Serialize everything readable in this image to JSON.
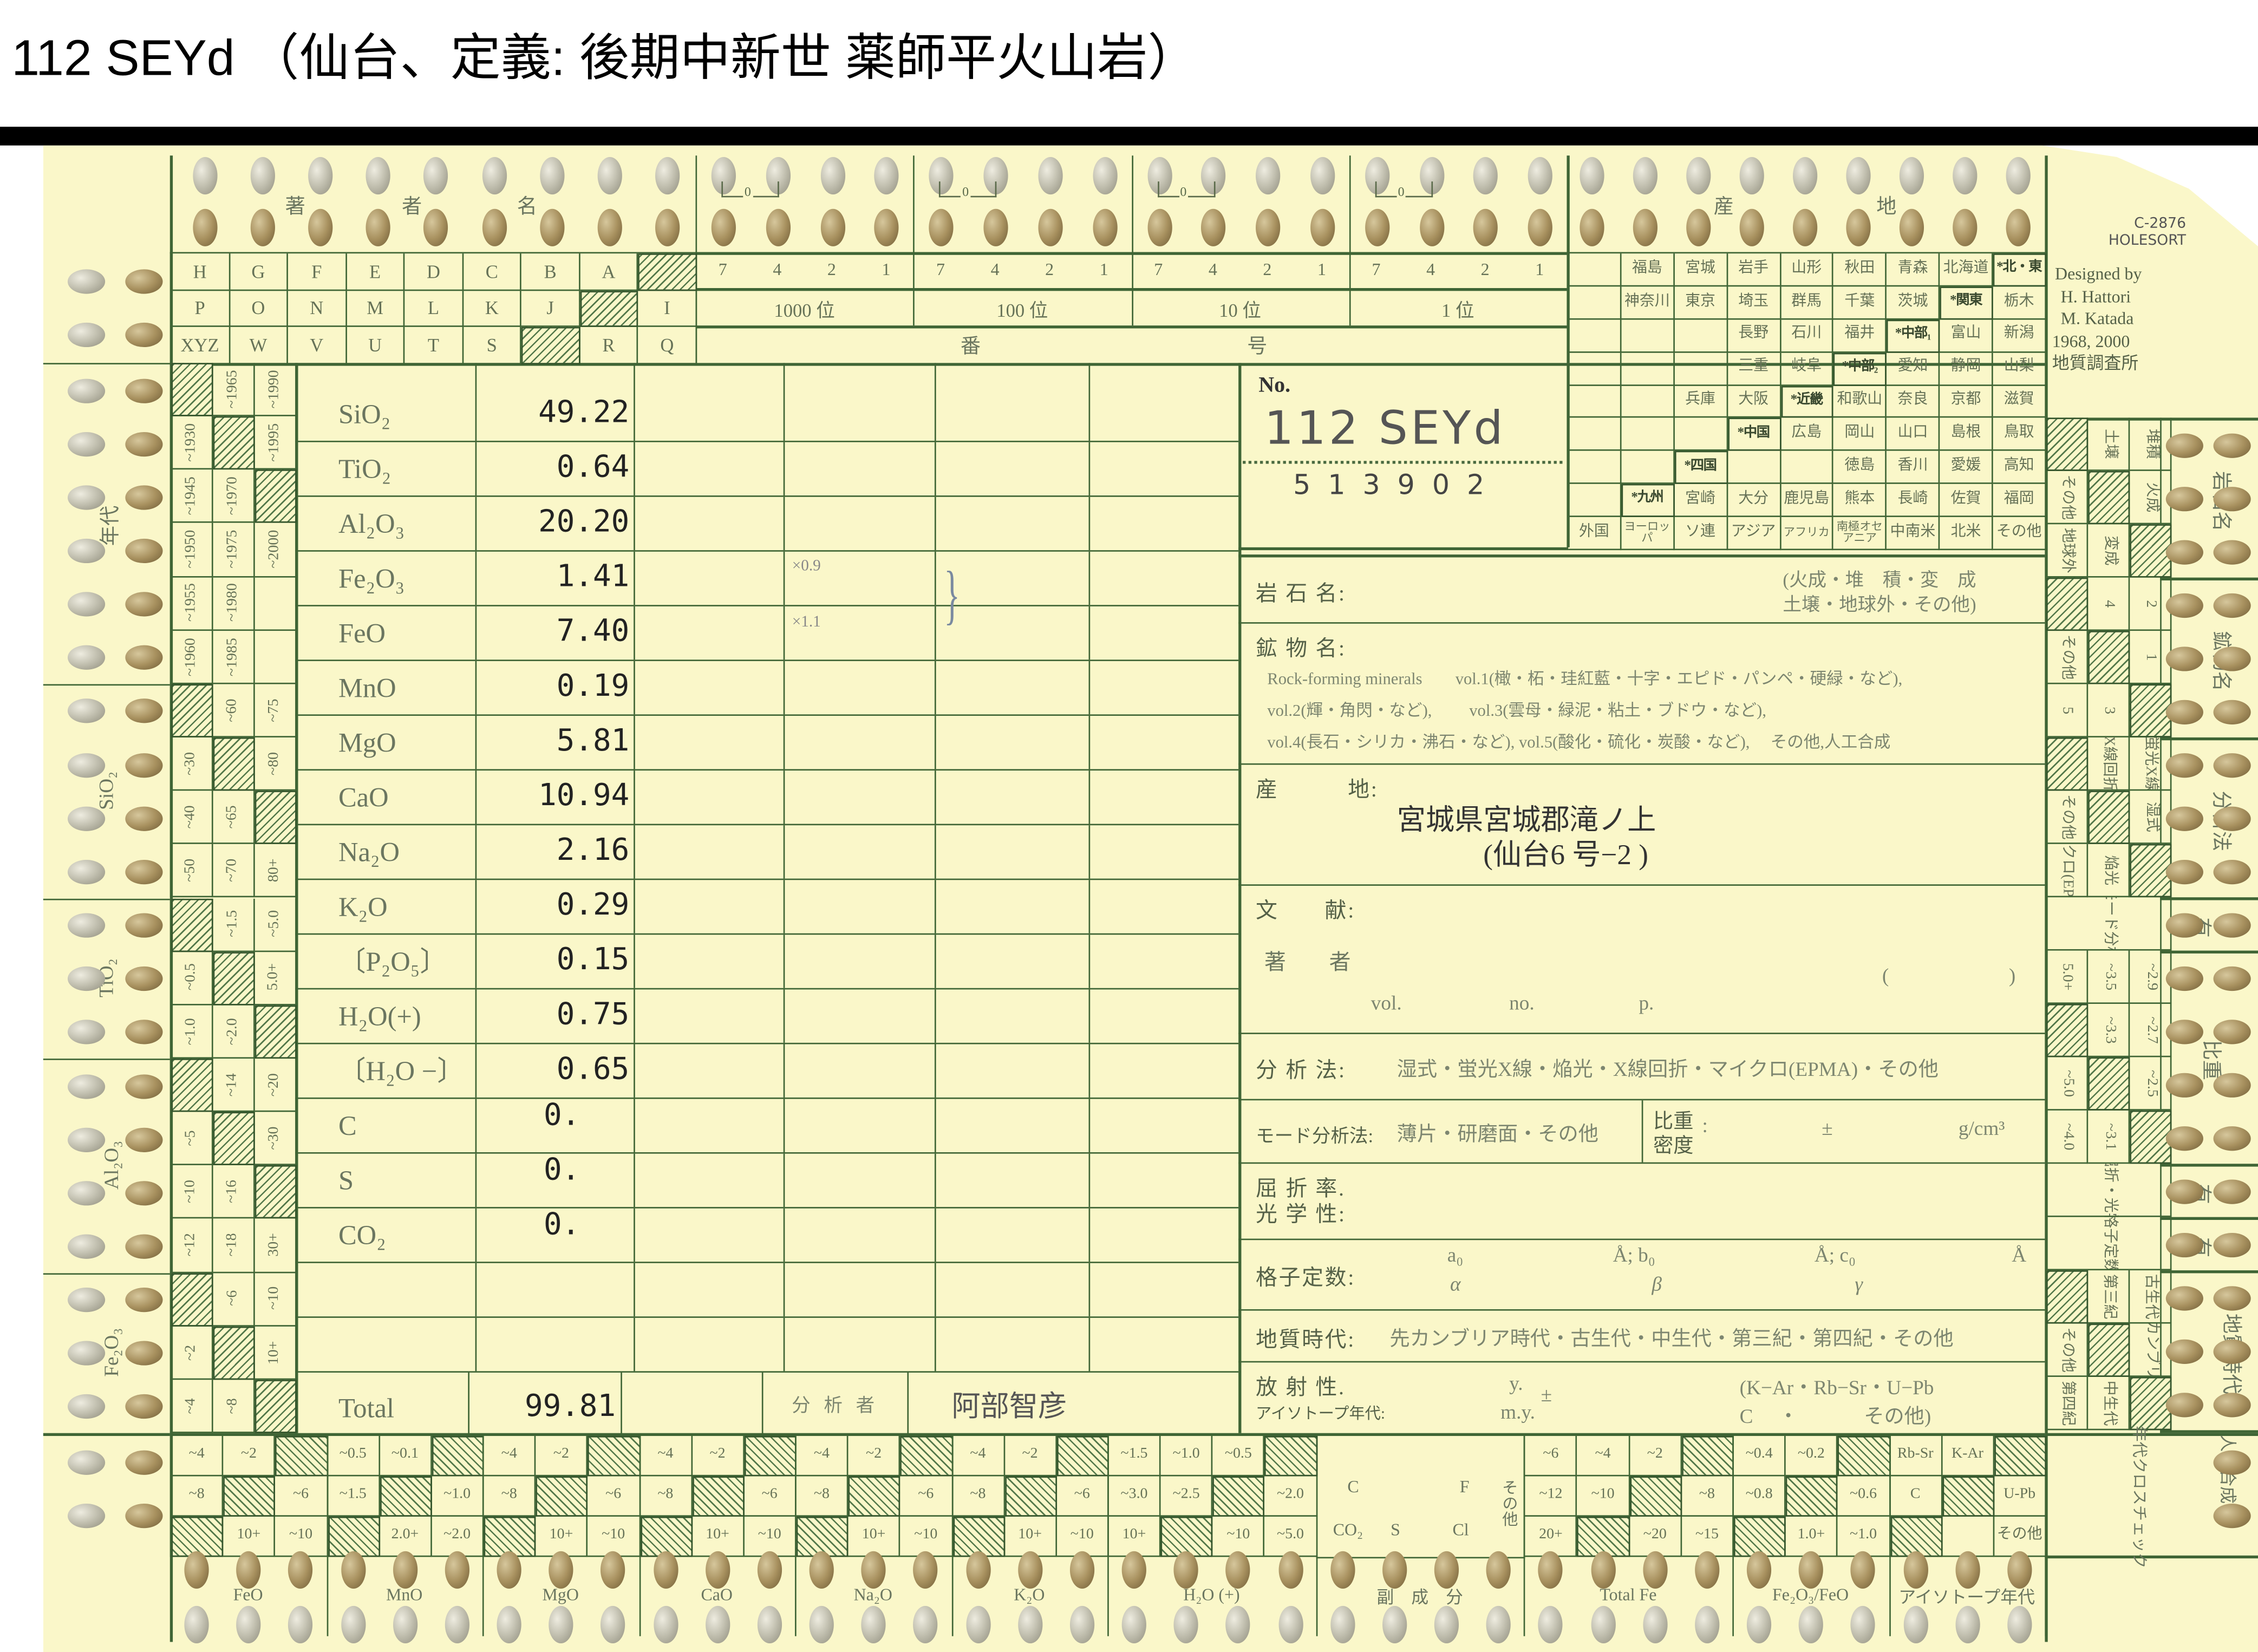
{
  "title": "112 SEYd （仙台、定義:  後期中新世  薬師平火山岩）",
  "header": {
    "author_label": [
      "著",
      "者",
      "名"
    ],
    "author_rows": [
      [
        "H",
        "G",
        "F",
        "E",
        "D",
        "C",
        "B",
        "A",
        "#"
      ],
      [
        "P",
        "O",
        "N",
        "M",
        "L",
        "K",
        "J",
        "#",
        "I"
      ],
      [
        "XYZ",
        "W",
        "V",
        "U",
        "T",
        "S",
        "#",
        "R",
        "Q"
      ]
    ],
    "number_digits": [
      "7",
      "4",
      "2",
      "1"
    ],
    "number_places": [
      "1000 位",
      "100 位",
      "10 位",
      "1 位"
    ],
    "number_label": [
      "番",
      "号"
    ],
    "zero_mark": "0",
    "locality_label": [
      "産",
      "地"
    ],
    "prefecture_rows": [
      [
        "",
        "福島",
        "宮城",
        "岩手",
        "山形",
        "秋田",
        "青森",
        "北海道",
        "*北・東"
      ],
      [
        "",
        "神奈川",
        "東京",
        "埼玉",
        "群馬",
        "千葉",
        "茨城",
        "*関東",
        "栃木"
      ],
      [
        "",
        "",
        "",
        "長野",
        "石川",
        "福井",
        "*中部₁",
        "富山",
        "新潟"
      ],
      [
        "",
        "",
        "",
        "三重",
        "岐阜",
        "*中部₂",
        "愛知",
        "静岡",
        "山梨"
      ],
      [
        "",
        "",
        "兵庫",
        "大阪",
        "*近畿",
        "和歌山",
        "奈良",
        "京都",
        "滋賀"
      ],
      [
        "",
        "",
        "",
        "*中国",
        "広島",
        "岡山",
        "山口",
        "島根",
        "鳥取"
      ],
      [
        "",
        "",
        "*四国",
        "",
        "",
        "徳島",
        "香川",
        "愛媛",
        "高知"
      ],
      [
        "",
        "*九州",
        "宮崎",
        "大分",
        "鹿児島",
        "熊本",
        "長崎",
        "佐賀",
        "福岡"
      ],
      [
        "外国",
        "ヨーロッパ",
        "ソ連",
        "アジア",
        "アフリカ",
        "南極オセアニア",
        "中南米",
        "北米",
        "その他"
      ]
    ]
  },
  "card_info": {
    "code": "C-2876",
    "brand": "HOLESORT",
    "designed_by": "Designed by",
    "designer_1": "H. Hattori",
    "designer_2": "M. Katada",
    "years": "1968, 2000",
    "org": "地質調査所"
  },
  "sample_no": {
    "label": "No.",
    "handwritten": "112 SEYd",
    "number": "5 1 3 9 0 2"
  },
  "analysis": {
    "rows": [
      {
        "oxide": "SiO₂",
        "value": "49.22"
      },
      {
        "oxide": "TiO₂",
        "value": "0.64"
      },
      {
        "oxide": "Al₂O₃",
        "value": "20.20"
      },
      {
        "oxide": "Fe₂O₃",
        "value": "1.41"
      },
      {
        "oxide": "FeO",
        "value": "7.40"
      },
      {
        "oxide": "MnO",
        "value": "0.19"
      },
      {
        "oxide": "MgO",
        "value": "5.81"
      },
      {
        "oxide": "CaO",
        "value": "10.94"
      },
      {
        "oxide": "Na₂O",
        "value": "2.16"
      },
      {
        "oxide": "K₂O",
        "value": "0.29"
      },
      {
        "oxide": "〔P₂O₅〕",
        "value": "0.15"
      },
      {
        "oxide": "H₂O(+)",
        "value": "0.75"
      },
      {
        "oxide": "〔H₂O −〕",
        "value": "0.65"
      },
      {
        "oxide": "C",
        "value": "0."
      },
      {
        "oxide": "S",
        "value": "0."
      },
      {
        "oxide": "CO₂",
        "value": "0."
      },
      {
        "oxide": "",
        "value": ""
      },
      {
        "oxide": "",
        "value": ""
      }
    ],
    "factor_fe2o3": "×0.9",
    "factor_feo": "×1.1",
    "brace": "}",
    "total_label": "Total",
    "total_value": "99.81",
    "analyst_label": "分 析 者",
    "analyst": "阿部智彦"
  },
  "fields": {
    "rock_name": {
      "label": "岩 石 名:",
      "options_1": "(火成・堆　積・変　成",
      "options_2": " 土壌・地球外・その他)"
    },
    "minerals": {
      "label": "鉱 物 名:",
      "line_1": "Rock-forming minerals　　vol.1(橄・柘・珪紅藍・十字・エピド・パンペ・硬緑・など),",
      "line_2": "vol.2(輝・角閃・など),　　 vol.3(雲母・緑泥・粘土・ブドウ・など),",
      "line_3": "vol.4(長石・シリカ・沸石・など), vol.5(酸化・硫化・炭酸・など),　 その他,人工合成"
    },
    "locality": {
      "label": "産　　　地:",
      "value_1": "宮城県宮城郡滝ノ上",
      "value_2": "(仙台6 号−2 )"
    },
    "literature": {
      "label": "文　　献:",
      "author_label": "著　　者",
      "paren_open": "(",
      "paren_close": ")",
      "vol": "vol.",
      "no": "no.",
      "p": "p."
    },
    "method": {
      "label": "分 析 法:",
      "options": "湿式・蛍光X線・焔光・X線回折・マイクロ(EPMA)・その他"
    },
    "mode": {
      "label": "モード分析法:",
      "options": "薄片・研磨面・その他",
      "sg_1": "比重",
      "sg_2": "密度",
      "colon": ":",
      "pm": "±",
      "unit": "g/cm³"
    },
    "refraction": {
      "label_1": "屈 折 率.",
      "label_2": "光 学 性:"
    },
    "lattice": {
      "label": "格子定数:",
      "a": "a₀",
      "b": "Å; b₀",
      "c": "Å; c₀",
      "ang": "Å",
      "alpha": "α",
      "beta": "β",
      "gamma": "γ"
    },
    "age": {
      "label": "地質時代:",
      "options": "先カンブリア時代・古生代・中生代・第三紀・第四紀・その他"
    },
    "radio": {
      "label_1": "放 射 性.",
      "label_2": "アイソトープ年代:",
      "y": "y.",
      "my": "m.y.",
      "pm": "±",
      "methods_1": "(K−Ar・Rb−Sr・U−Pb",
      "methods_2": " C　 ・　　　 その他)"
    }
  },
  "left_strip": {
    "groups": [
      {
        "label": "年代",
        "rows": [
          [
            "#",
            "~1965",
            "~1990"
          ],
          [
            "~1930",
            "#",
            "~1995"
          ],
          [
            "~1945",
            "~1970",
            "#"
          ],
          [
            "~1950",
            "~1975",
            "~2000"
          ],
          [
            "~1955",
            "~1980",
            ""
          ],
          [
            "~1960",
            "~1985",
            ""
          ]
        ]
      },
      {
        "label": "SiO₂",
        "rows": [
          [
            "#",
            "~60",
            "~75"
          ],
          [
            "~30",
            "#",
            "~80"
          ],
          [
            "~40",
            "~65",
            "#"
          ],
          [
            "~50",
            "~70",
            "80+"
          ]
        ]
      },
      {
        "label": "TiO₂",
        "rows": [
          [
            "#",
            "~1.5",
            "~5.0"
          ],
          [
            "~0.5",
            "#",
            "5.0+"
          ],
          [
            "~1.0",
            "~2.0",
            "#"
          ]
        ]
      },
      {
        "label": "Al₂O₃",
        "rows": [
          [
            "#",
            "~14",
            "~20"
          ],
          [
            "~5",
            "#",
            "~30"
          ],
          [
            "~10",
            "~16",
            "#"
          ],
          [
            "~12",
            "~18",
            "30+"
          ]
        ]
      },
      {
        "label": "Fe₂O₃",
        "rows": [
          [
            "#",
            "~6",
            "~10"
          ],
          [
            "~2",
            "#",
            "10+"
          ],
          [
            "~4",
            "~8",
            "#"
          ]
        ]
      }
    ]
  },
  "right_strip": {
    "groups": [
      {
        "label": "岩石名",
        "rows": [
          [
            "#",
            "土壌",
            "堆積"
          ],
          [
            "その他",
            "#",
            "火成"
          ],
          [
            "地球外",
            "変成",
            "#"
          ]
        ]
      },
      {
        "label": "鉱物名",
        "rows": [
          [
            "#",
            "4",
            "2"
          ],
          [
            "その他",
            "#",
            "1"
          ],
          [
            "5",
            "3",
            "#"
          ]
        ]
      },
      {
        "label": "分析法",
        "rows": [
          [
            "#",
            "X線回折",
            "蛍光X線"
          ],
          [
            "その他",
            "#",
            "湿式"
          ],
          [
            "マイクロ(EPMA)",
            "焔光",
            "#"
          ]
        ]
      },
      {
        "label": "有",
        "rows": [
          [
            "モード分析"
          ]
        ]
      },
      {
        "label": "比重",
        "rows": [
          [
            "5.0+",
            "~3.5",
            "~2.9"
          ],
          [
            "#",
            "~3.3",
            "~2.7"
          ],
          [
            "~5.0",
            "#",
            "~2.5"
          ],
          [
            "~4.0",
            "~3.1",
            "#"
          ]
        ]
      },
      {
        "label": "有",
        "rows": [
          [
            "屈折・光学"
          ]
        ]
      },
      {
        "label": "有",
        "rows": [
          [
            "格子定数"
          ]
        ]
      },
      {
        "label": "地質時代",
        "rows": [
          [
            "#",
            "第三紀",
            "古生代"
          ],
          [
            "その他",
            "#",
            "先カンブリア"
          ],
          [
            "第四紀",
            "中生代",
            "#"
          ]
        ]
      }
    ],
    "corner_label_1": "人工合成",
    "corner_label_2": "年代クロスチェック"
  },
  "bottom_strip": {
    "groups": [
      {
        "label": "FeO",
        "rows": [
          [
            "~4",
            "~2",
            "/"
          ],
          [
            "~8",
            "/",
            "~6"
          ],
          [
            "/",
            "10+",
            "~10"
          ]
        ]
      },
      {
        "label": "MnO",
        "rows": [
          [
            "~0.5",
            "~0.1",
            "/"
          ],
          [
            "~1.5",
            "/",
            "~1.0"
          ],
          [
            "/",
            "2.0+",
            "~2.0"
          ]
        ]
      },
      {
        "label": "MgO",
        "rows": [
          [
            "~4",
            "~2",
            "/"
          ],
          [
            "~8",
            "/",
            "~6"
          ],
          [
            "/",
            "10+",
            "~10"
          ]
        ]
      },
      {
        "label": "CaO",
        "rows": [
          [
            "~4",
            "~2",
            "/"
          ],
          [
            "~8",
            "/",
            "~6"
          ],
          [
            "/",
            "10+",
            "~10"
          ]
        ]
      },
      {
        "label": "Na₂O",
        "rows": [
          [
            "~4",
            "~2",
            "/"
          ],
          [
            "~8",
            "/",
            "~6"
          ],
          [
            "/",
            "10+",
            "~10"
          ]
        ]
      },
      {
        "label": "K₂O",
        "rows": [
          [
            "~4",
            "~2",
            "/"
          ],
          [
            "~8",
            "/",
            "~6"
          ],
          [
            "/",
            "10+",
            "~10"
          ]
        ]
      },
      {
        "label": "H₂O (+)",
        "rows": [
          [
            "~1.5",
            "~1.0",
            "~0.5",
            "/"
          ],
          [
            "~3.0",
            "~2.5",
            "/",
            "~2.0"
          ],
          [
            "10+",
            "/",
            "~10",
            "~5.0"
          ]
        ]
      },
      {
        "label": "副　成　分",
        "minor": {
          "c": "C",
          "f": "F",
          "co2": "CO₂",
          "s": "S",
          "cl": "Cl",
          "other": "その他"
        }
      },
      {
        "label": "Total Fe",
        "rows": [
          [
            "~6",
            "~4",
            "~2",
            "/"
          ],
          [
            "~12",
            "~10",
            "/",
            "~8"
          ],
          [
            "20+",
            "/",
            "~20",
            "~15"
          ]
        ]
      },
      {
        "label": "Fe₂O₃/FeO",
        "rows": [
          [
            "~0.4",
            "~0.2",
            "/"
          ],
          [
            "~0.8",
            "/",
            "~0.6"
          ],
          [
            "/",
            "1.0+",
            "~1.0"
          ]
        ]
      },
      {
        "label": "アイソトープ年代",
        "rows": [
          [
            "Rb-Sr",
            "K-Ar",
            "/"
          ],
          [
            "C",
            "/",
            "U-Pb"
          ],
          [
            "/",
            "",
            "その他"
          ]
        ]
      }
    ]
  },
  "colors": {
    "card": "#faf7c9",
    "line": "#3f6535",
    "ink": "#222222"
  }
}
